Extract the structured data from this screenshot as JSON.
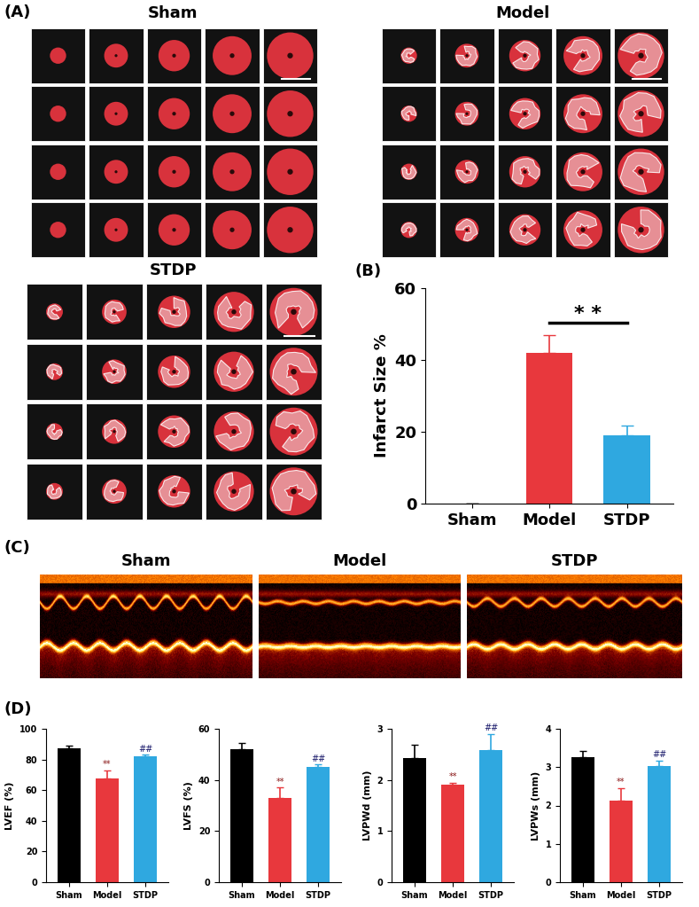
{
  "image_panels": [
    {
      "panel": "(A)",
      "titles": [
        "Sham",
        "Model",
        "STDP"
      ]
    },
    {
      "panel": "(C)",
      "titles": [
        "Sham",
        "Model",
        "STDP"
      ]
    }
  ],
  "chart_data": [
    {
      "type": "bar",
      "panel": "(B)",
      "categories": [
        "Sham",
        "Model",
        "STDP"
      ],
      "values": [
        0,
        42,
        19
      ],
      "errors": [
        0,
        4.8,
        2.8
      ],
      "colors": [
        "#000000",
        "#e8383d",
        "#2fa8e0"
      ],
      "ylabel": "Infarct Size %",
      "ylim": [
        0,
        60
      ],
      "yticks": [
        0,
        20,
        40,
        60
      ],
      "annotations": [
        {
          "text": "* *",
          "between": [
            "Model",
            "STDP"
          ]
        }
      ]
    },
    {
      "type": "bar",
      "panel": "(D)",
      "categories": [
        "Sham",
        "Model",
        "STDP"
      ],
      "values": [
        87.5,
        67.5,
        82
      ],
      "errors": [
        1.5,
        5.5,
        1
      ],
      "colors": [
        "#000000",
        "#e8383d",
        "#2fa8e0"
      ],
      "ylabel": "LVEF (%)",
      "ylim": [
        0,
        100
      ],
      "yticks": [
        0,
        20,
        40,
        60,
        80,
        100
      ],
      "significance": [
        null,
        "**",
        "##"
      ]
    },
    {
      "type": "bar",
      "categories": [
        "Sham",
        "Model",
        "STDP"
      ],
      "values": [
        52,
        33,
        45
      ],
      "errors": [
        2.5,
        4,
        1
      ],
      "colors": [
        "#000000",
        "#e8383d",
        "#2fa8e0"
      ],
      "ylabel": "LVFS (%)",
      "ylim": [
        0,
        60
      ],
      "yticks": [
        0,
        20,
        40,
        60
      ],
      "significance": [
        null,
        "**",
        "##"
      ]
    },
    {
      "type": "bar",
      "categories": [
        "Sham",
        "Model",
        "STDP"
      ],
      "values": [
        2.43,
        1.9,
        2.58
      ],
      "errors": [
        0.25,
        0.04,
        0.32
      ],
      "colors": [
        "#000000",
        "#e8383d",
        "#2fa8e0"
      ],
      "ylabel": "LVPWd (mm)",
      "ylim": [
        0,
        3
      ],
      "yticks": [
        0,
        1,
        2,
        3
      ],
      "significance": [
        null,
        "**",
        "##"
      ]
    },
    {
      "type": "bar",
      "categories": [
        "Sham",
        "Model",
        "STDP"
      ],
      "values": [
        3.27,
        2.12,
        3.02
      ],
      "errors": [
        0.15,
        0.33,
        0.15
      ],
      "colors": [
        "#000000",
        "#e8383d",
        "#2fa8e0"
      ],
      "ylabel": "LVPWs (mm)",
      "ylim": [
        0,
        4
      ],
      "yticks": [
        0,
        1,
        2,
        3,
        4
      ],
      "significance": [
        null,
        "**",
        "##"
      ]
    }
  ]
}
